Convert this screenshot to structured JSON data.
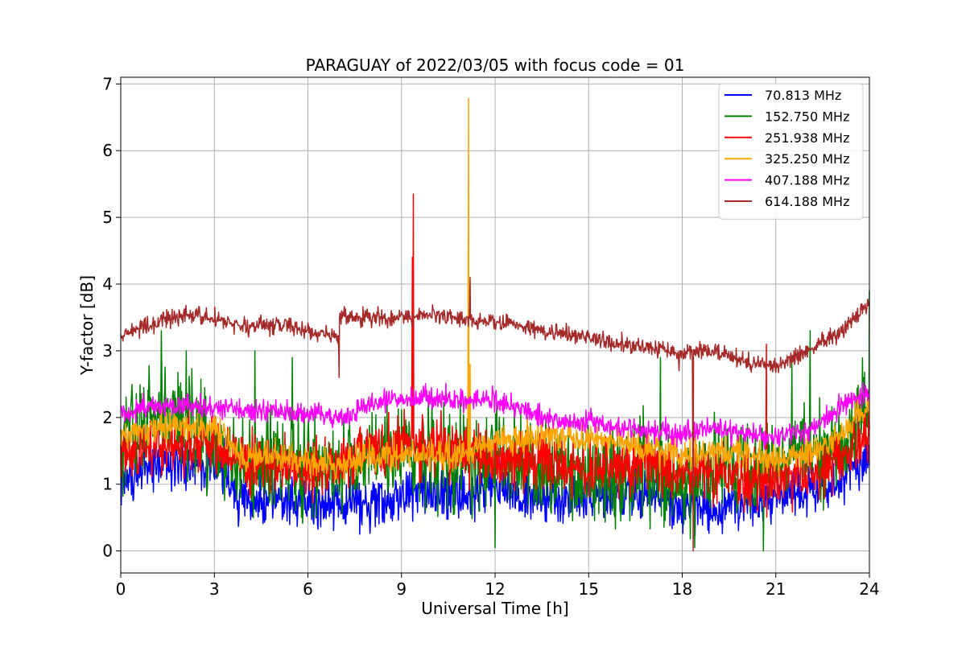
{
  "chart_data": {
    "type": "line",
    "title": "PARAGUAY of 2022/03/05 with focus code = 01",
    "xlabel": "Universal Time [h]",
    "ylabel": "Y-factor [dB]",
    "xlim": [
      0,
      24
    ],
    "ylim": [
      -0.33,
      7.1
    ],
    "xticks": [
      0,
      3,
      6,
      9,
      12,
      15,
      18,
      21,
      24
    ],
    "yticks": [
      0,
      1,
      2,
      3,
      4,
      5,
      6,
      7
    ],
    "grid": true,
    "legend_position": "top-right",
    "series": [
      {
        "name": " 70.813 MHz",
        "color": "#0000ff",
        "baseline": {
          "x": [
            0,
            1,
            2,
            3,
            4,
            5,
            6,
            7,
            8,
            9,
            10,
            11,
            12,
            13,
            14,
            15,
            16,
            17,
            18,
            19,
            20,
            21,
            22,
            23,
            24
          ],
          "y": [
            1.1,
            1.3,
            1.3,
            1.35,
            0.75,
            0.75,
            0.7,
            0.72,
            0.72,
            0.8,
            0.85,
            0.85,
            0.95,
            0.8,
            0.75,
            0.82,
            0.85,
            0.85,
            0.65,
            0.62,
            0.7,
            0.8,
            0.95,
            1.0,
            1.45
          ]
        },
        "noise": 0.28,
        "spikes": []
      },
      {
        "name": "152.750 MHz",
        "color": "#008000",
        "baseline": {
          "x": [
            0,
            1,
            2,
            3,
            4,
            5,
            6,
            7,
            8,
            9,
            10,
            11,
            12,
            13,
            14,
            15,
            16,
            17,
            18,
            19,
            20,
            21,
            22,
            23,
            24
          ],
          "y": [
            1.7,
            2.1,
            2.0,
            1.6,
            1.3,
            1.3,
            1.2,
            1.3,
            1.4,
            1.5,
            1.5,
            1.3,
            1.4,
            1.35,
            1.2,
            1.1,
            1.15,
            1.2,
            1.0,
            1.2,
            1.3,
            1.3,
            1.5,
            1.55,
            2.0
          ]
        },
        "noise": 0.55,
        "spikes": [
          {
            "x": 1.3,
            "y": 3.3
          },
          {
            "x": 2.1,
            "y": 3.0
          },
          {
            "x": 4.3,
            "y": 3.0
          },
          {
            "x": 5.5,
            "y": 2.9
          },
          {
            "x": 17.3,
            "y": 2.9
          },
          {
            "x": 18.4,
            "y": 0.05
          },
          {
            "x": 20.6,
            "y": 3.5
          },
          {
            "x": 20.6,
            "y": 0.0
          },
          {
            "x": 12.0,
            "y": 0.05
          },
          {
            "x": 22.1,
            "y": 3.3
          },
          {
            "x": 24.0,
            "y": 3.9
          }
        ]
      },
      {
        "name": "251.938 MHz",
        "color": "#ff0000",
        "baseline": {
          "x": [
            0,
            1,
            2,
            3,
            4,
            5,
            6,
            7,
            8,
            9,
            10,
            11,
            12,
            13,
            14,
            15,
            16,
            17,
            18,
            19,
            20,
            21,
            22,
            23,
            24
          ],
          "y": [
            1.45,
            1.55,
            1.6,
            1.6,
            1.35,
            1.3,
            1.25,
            1.3,
            1.55,
            1.6,
            1.55,
            1.5,
            1.35,
            1.35,
            1.3,
            1.25,
            1.25,
            1.25,
            1.2,
            1.15,
            1.05,
            1.0,
            1.15,
            1.35,
            1.7
          ]
        },
        "noise": 0.32,
        "spikes": [
          {
            "x": 9.38,
            "y": 5.35
          },
          {
            "x": 9.35,
            "y": 4.4
          },
          {
            "x": 20.7,
            "y": 3.1
          }
        ]
      },
      {
        "name": "325.250 MHz",
        "color": "#ffa500",
        "baseline": {
          "x": [
            0,
            1,
            2,
            3,
            4,
            5,
            6,
            7,
            8,
            9,
            10,
            11,
            12,
            13,
            14,
            15,
            16,
            17,
            18,
            19,
            20,
            21,
            22,
            23,
            24
          ],
          "y": [
            1.7,
            1.85,
            1.85,
            1.9,
            1.35,
            1.45,
            1.35,
            1.3,
            1.4,
            1.45,
            1.45,
            1.45,
            1.65,
            1.7,
            1.7,
            1.65,
            1.65,
            1.55,
            1.4,
            1.5,
            1.45,
            1.35,
            1.45,
            1.7,
            2.2
          ]
        },
        "noise": 0.18,
        "spikes": [
          {
            "x": 11.15,
            "y": 6.78
          },
          {
            "x": 11.2,
            "y": 2.8
          }
        ]
      },
      {
        "name": "407.188 MHz",
        "color": "#ff00ff",
        "baseline": {
          "x": [
            0,
            1,
            2,
            3,
            4,
            5,
            6,
            7,
            8,
            9,
            10,
            11,
            12,
            13,
            14,
            15,
            16,
            17,
            18,
            19,
            20,
            21,
            22,
            23,
            24
          ],
          "y": [
            2.05,
            2.15,
            2.2,
            2.15,
            2.1,
            2.1,
            2.05,
            2.0,
            2.2,
            2.25,
            2.3,
            2.25,
            2.25,
            2.1,
            1.95,
            1.95,
            1.85,
            1.8,
            1.75,
            1.85,
            1.75,
            1.7,
            1.8,
            2.15,
            2.4
          ]
        },
        "noise": 0.12,
        "spikes": []
      },
      {
        "name": "614.188 MHz",
        "color": "#a52a2a",
        "baseline": {
          "x": [
            0,
            1,
            2,
            3,
            4,
            5,
            6,
            7,
            7.01,
            8,
            9,
            10,
            11,
            12,
            13,
            14,
            15,
            16,
            17,
            18,
            19,
            20,
            21,
            22,
            23,
            24
          ],
          "y": [
            3.2,
            3.4,
            3.55,
            3.5,
            3.35,
            3.4,
            3.3,
            3.2,
            3.5,
            3.5,
            3.5,
            3.55,
            3.45,
            3.45,
            3.35,
            3.25,
            3.2,
            3.1,
            3.05,
            2.95,
            3.0,
            2.85,
            2.75,
            3.0,
            3.25,
            3.7
          ]
        },
        "noise": 0.1,
        "spikes": [
          {
            "x": 7.0,
            "y": 2.6
          },
          {
            "x": 11.2,
            "y": 4.1
          },
          {
            "x": 18.35,
            "y": 0.0
          },
          {
            "x": 17.9,
            "y": 2.7
          }
        ]
      }
    ]
  }
}
